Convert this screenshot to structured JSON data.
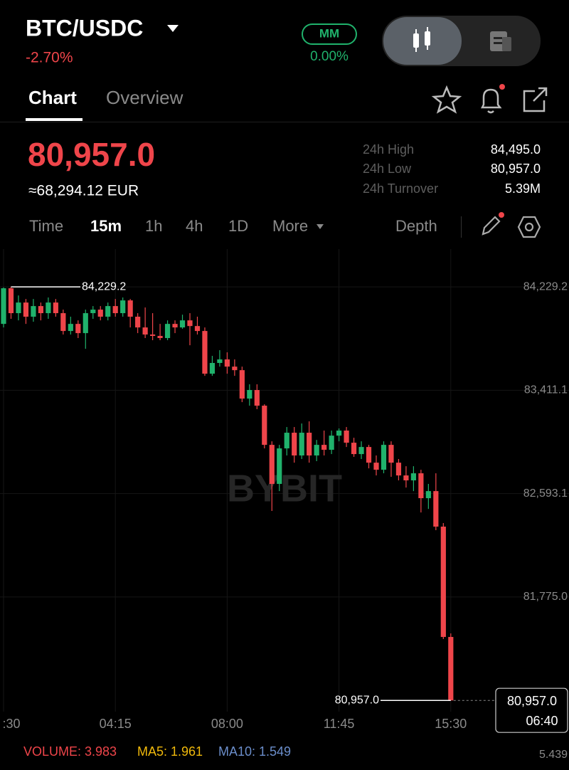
{
  "header": {
    "pair": "BTC/USDC",
    "change": "-2.70%",
    "mm_badge": "MM",
    "mm_value": "0.00%"
  },
  "tabs": [
    "Chart",
    "Overview"
  ],
  "price": {
    "last": "80,957.0",
    "fiat": "≈68,294.12 EUR"
  },
  "stats": [
    {
      "label": "24h High",
      "value": "84,495.0"
    },
    {
      "label": "24h Low",
      "value": "80,957.0"
    },
    {
      "label": "24h Turnover",
      "value": "5.39M"
    }
  ],
  "intervals": [
    "Time",
    "15m",
    "1h",
    "4h",
    "1D",
    "More"
  ],
  "depth": "Depth",
  "chart_data": {
    "type": "candlestick",
    "watermark": "BYBIT",
    "categories": [
      ":30",
      null,
      null,
      null,
      null,
      null,
      null,
      null,
      null,
      null,
      null,
      null,
      null,
      null,
      null,
      "04:15",
      null,
      null,
      null,
      null,
      null,
      null,
      null,
      null,
      null,
      null,
      null,
      null,
      null,
      null,
      "08:00",
      null,
      null,
      null,
      null,
      null,
      null,
      null,
      null,
      null,
      null,
      null,
      null,
      null,
      null,
      "11:45",
      null,
      null,
      null,
      null,
      null,
      null,
      null,
      null,
      null,
      null,
      null,
      null,
      null,
      null,
      "15:30"
    ],
    "open": [
      83936,
      84218,
      84021,
      84105,
      83993,
      84077,
      84021,
      84105,
      84021,
      83880,
      83936,
      83863,
      84021,
      84049,
      83993,
      84077,
      84021,
      84122,
      83993,
      83908,
      83852,
      83841,
      83824,
      83936,
      83908,
      83964,
      83919,
      83880,
      83542,
      83627,
      83655,
      83598,
      83570,
      83345,
      83413,
      83289,
      82979,
      82670,
      82951,
      83075,
      82895,
      83075,
      82895,
      82979,
      82940,
      83052,
      83092,
      82996,
      82906,
      82962,
      82838,
      82782,
      82979,
      82838,
      82737,
      82698,
      82754,
      82557,
      82613,
      82332,
      81459
    ],
    "high": [
      84225,
      84229.2,
      84161,
      84133,
      84133,
      84105,
      84145,
      84133,
      84049,
      83993,
      83964,
      84049,
      84077,
      84077,
      84105,
      84133,
      84145,
      84133,
      84021,
      84066,
      84021,
      83936,
      83964,
      83964,
      84009,
      84021,
      83993,
      83908,
      83683,
      83728,
      83711,
      83655,
      83598,
      83458,
      83458,
      83300,
      83007,
      82979,
      83120,
      83120,
      83148,
      83165,
      83018,
      83092,
      83092,
      83109,
      83120,
      83035,
      83007,
      82979,
      82895,
      83007,
      83007,
      82867,
      82810,
      82810,
      82782,
      82670,
      82754,
      82360,
      81487
    ],
    "low": [
      83908,
      83976,
      83964,
      83936,
      83953,
      83964,
      83976,
      83993,
      83852,
      83852,
      83824,
      83739,
      83976,
      83964,
      83964,
      83993,
      83993,
      83908,
      83863,
      83824,
      83807,
      83807,
      83807,
      83863,
      83897,
      83767,
      83852,
      83525,
      83525,
      83598,
      83542,
      83525,
      83317,
      83289,
      83261,
      82951,
      82456,
      82613,
      82895,
      82838,
      82867,
      82838,
      82850,
      82895,
      82906,
      83007,
      82962,
      82884,
      82867,
      82793,
      82737,
      82754,
      82726,
      82698,
      82641,
      82613,
      82444,
      82472,
      82304,
      81442,
      80957
    ],
    "close": [
      84218,
      84021,
      84105,
      83993,
      84077,
      84021,
      84105,
      84021,
      83880,
      83936,
      83863,
      84021,
      84049,
      83993,
      84077,
      84021,
      84122,
      83993,
      83908,
      83852,
      83841,
      83824,
      83936,
      83908,
      83964,
      83919,
      83880,
      83542,
      83627,
      83655,
      83598,
      83570,
      83345,
      83413,
      83289,
      82979,
      82670,
      82951,
      83075,
      82895,
      83075,
      82895,
      82979,
      82940,
      83052,
      83092,
      82996,
      82906,
      82962,
      82838,
      82782,
      82979,
      82838,
      82737,
      82698,
      82754,
      82557,
      82613,
      82332,
      81459,
      80957
    ],
    "up_color": "#20b26c",
    "down_color": "#ef454a",
    "ylim": [
      80868,
      84528
    ],
    "yticks": [
      {
        "value": 81775.0,
        "label": "81,775.0"
      },
      {
        "value": 82593.1,
        "label": "82,593.1"
      },
      {
        "value": 83411.1,
        "label": "83,411.1"
      },
      {
        "value": 84229.2,
        "label": "84,229.2"
      }
    ],
    "grid": true,
    "high_label": "84,229.2",
    "low_label": "80,957.0",
    "last_price_label": "80,957.0",
    "countdown": "06:40"
  },
  "volume": {
    "label": "VOLUME: 3.983",
    "ma5": "MA5: 1.961",
    "ma10": "MA10: 1.549",
    "axis_top": "5.439"
  }
}
